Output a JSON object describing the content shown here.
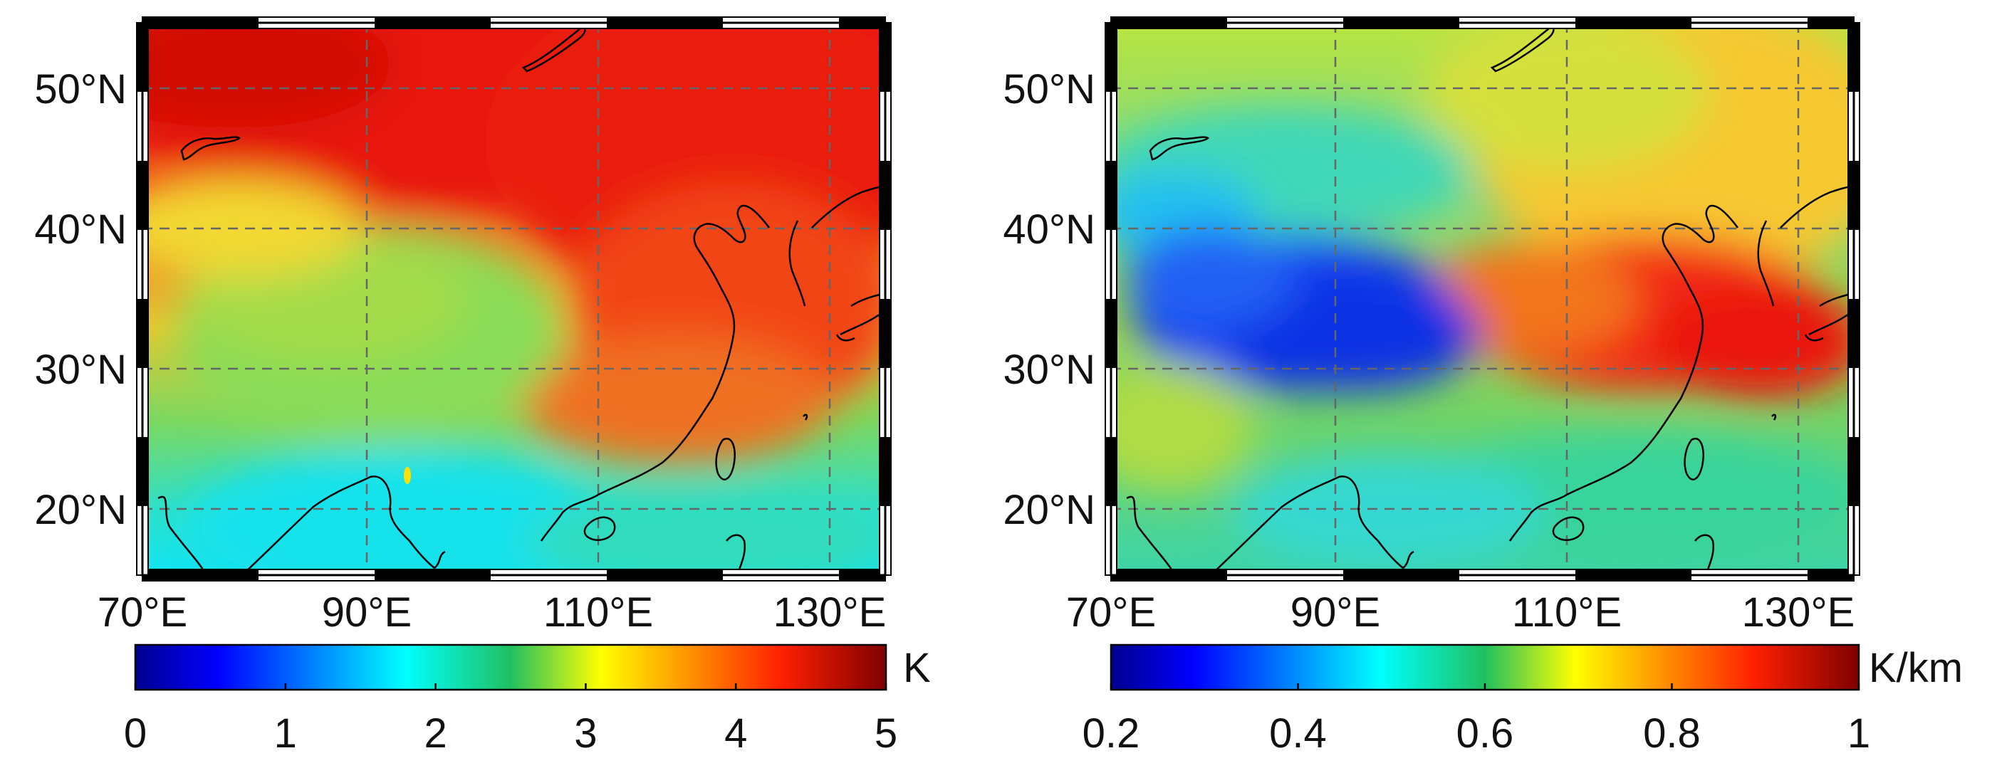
{
  "panels": [
    {
      "id": "left",
      "lat_ticks": [
        "50°N",
        "40°N",
        "30°N",
        "20°N"
      ],
      "lon_ticks": [
        "70°E",
        "90°E",
        "110°E",
        "130°E"
      ],
      "colorbar": {
        "unit": "K",
        "ticks": [
          "0",
          "1",
          "2",
          "3",
          "4",
          "5"
        ],
        "min": 0,
        "max": 5
      }
    },
    {
      "id": "right",
      "lat_ticks": [
        "50°N",
        "40°N",
        "30°N",
        "20°N"
      ],
      "lon_ticks": [
        "70°E",
        "90°E",
        "110°E",
        "130°E"
      ],
      "colorbar": {
        "unit": "K/km",
        "ticks": [
          "0.2",
          "0.4",
          "0.6",
          "0.8",
          "1"
        ],
        "min": 0.2,
        "max": 1
      }
    }
  ],
  "map": {
    "lon_range": [
      70,
      134
    ],
    "lat_range": [
      15,
      55
    ],
    "lon_grid": [
      70,
      90,
      110,
      130
    ],
    "lat_grid": [
      20,
      30,
      40,
      50
    ],
    "colormap": "jet"
  },
  "colors": {
    "coastline": "#000000",
    "gridline": "#666666",
    "frame": "#000000"
  }
}
